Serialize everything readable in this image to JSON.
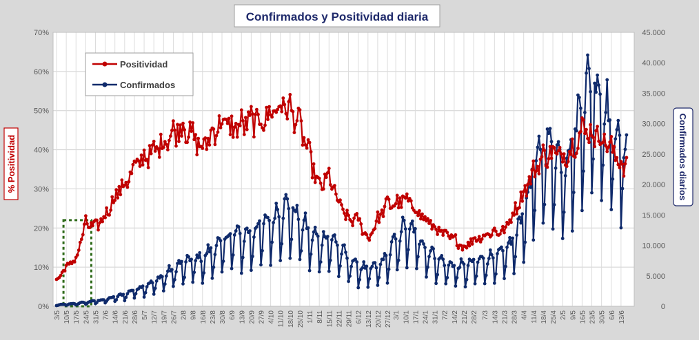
{
  "chart_data": {
    "type": "line",
    "title": "Confirmados  y Positividad  diaria",
    "ylabel_left": "% Positividad",
    "ylabel_right": "Confirmados diarios",
    "legend_position": "top-left",
    "grid": true,
    "y_left": {
      "min": 0,
      "max": 70,
      "ticks": [
        "0%",
        "10%",
        "20%",
        "30%",
        "40%",
        "50%",
        "60%",
        "70%"
      ]
    },
    "y_right": {
      "min": 0,
      "max": 45000,
      "ticks": [
        "0",
        "5.000",
        "10.000",
        "15.000",
        "20.000",
        "25.000",
        "30.000",
        "35.000",
        "40.000",
        "45.000"
      ]
    },
    "x_ticks": [
      "3/5",
      "10/5",
      "17/5",
      "24/5",
      "31/5",
      "7/6",
      "14/6",
      "21/6",
      "28/6",
      "5/7",
      "12/7",
      "19/7",
      "26/7",
      "2/8",
      "9/8",
      "16/8",
      "23/8",
      "30/8",
      "6/9",
      "13/9",
      "20/9",
      "27/9",
      "4/10",
      "11/10",
      "18/10",
      "25/10",
      "1/11",
      "8/11",
      "15/11",
      "22/11",
      "29/11",
      "6/12",
      "13/12",
      "20/12",
      "27/12",
      "3/1",
      "10/1",
      "17/1",
      "24/1",
      "31/1",
      "7/2",
      "14/2",
      "21/2",
      "28/2",
      "7/3",
      "14/3",
      "21/3",
      "28/3",
      "4/4",
      "11/4",
      "18/4",
      "25/4",
      "2/5",
      "9/5",
      "16/5",
      "23/5",
      "30/5",
      "6/6",
      "13/6"
    ],
    "series": [
      {
        "name": "Positividad",
        "axis": "left",
        "color": "#c00000",
        "weekly_points": [
          {
            "x": "3/5",
            "y": 6.5
          },
          {
            "x": "10/5",
            "y": 10
          },
          {
            "x": "17/5",
            "y": 12
          },
          {
            "x": "24/5",
            "y": 21
          },
          {
            "x": "31/5",
            "y": 20
          },
          {
            "x": "7/6",
            "y": 23
          },
          {
            "x": "14/6",
            "y": 28
          },
          {
            "x": "21/6",
            "y": 31
          },
          {
            "x": "28/6",
            "y": 35
          },
          {
            "x": "5/7",
            "y": 38
          },
          {
            "x": "12/7",
            "y": 39
          },
          {
            "x": "19/7",
            "y": 42
          },
          {
            "x": "26/7",
            "y": 44
          },
          {
            "x": "2/8",
            "y": 46
          },
          {
            "x": "9/8",
            "y": 43
          },
          {
            "x": "16/8",
            "y": 40
          },
          {
            "x": "23/8",
            "y": 44
          },
          {
            "x": "30/8",
            "y": 47
          },
          {
            "x": "6/9",
            "y": 45
          },
          {
            "x": "13/9",
            "y": 46
          },
          {
            "x": "20/9",
            "y": 47
          },
          {
            "x": "27/9",
            "y": 47
          },
          {
            "x": "4/10",
            "y": 49
          },
          {
            "x": "11/10",
            "y": 51
          },
          {
            "x": "18/10",
            "y": 50
          },
          {
            "x": "25/10",
            "y": 46
          },
          {
            "x": "1/11",
            "y": 38
          },
          {
            "x": "8/11",
            "y": 30
          },
          {
            "x": "15/11",
            "y": 33
          },
          {
            "x": "22/11",
            "y": 26
          },
          {
            "x": "29/11",
            "y": 22
          },
          {
            "x": "6/12",
            "y": 22
          },
          {
            "x": "13/12",
            "y": 17
          },
          {
            "x": "20/12",
            "y": 22
          },
          {
            "x": "27/12",
            "y": 26
          },
          {
            "x": "3/1",
            "y": 26
          },
          {
            "x": "10/1",
            "y": 27
          },
          {
            "x": "17/1",
            "y": 25
          },
          {
            "x": "24/1",
            "y": 22
          },
          {
            "x": "31/1",
            "y": 20
          },
          {
            "x": "7/2",
            "y": 18
          },
          {
            "x": "14/2",
            "y": 17
          },
          {
            "x": "21/2",
            "y": 15
          },
          {
            "x": "28/2",
            "y": 17
          },
          {
            "x": "7/3",
            "y": 18
          },
          {
            "x": "14/3",
            "y": 19
          },
          {
            "x": "21/3",
            "y": 19
          },
          {
            "x": "28/3",
            "y": 24
          },
          {
            "x": "4/4",
            "y": 29
          },
          {
            "x": "11/4",
            "y": 34
          },
          {
            "x": "18/4",
            "y": 38
          },
          {
            "x": "25/4",
            "y": 39
          },
          {
            "x": "2/5",
            "y": 38
          },
          {
            "x": "9/5",
            "y": 40
          },
          {
            "x": "16/5",
            "y": 45
          },
          {
            "x": "23/5",
            "y": 44
          },
          {
            "x": "30/5",
            "y": 43
          },
          {
            "x": "6/6",
            "y": 40
          },
          {
            "x": "13/6",
            "y": 36
          }
        ]
      },
      {
        "name": "Confirmados",
        "axis": "right",
        "color": "#0f2a6b",
        "weekly_points": [
          {
            "x": "3/5",
            "y": 200
          },
          {
            "x": "10/5",
            "y": 300
          },
          {
            "x": "17/5",
            "y": 400
          },
          {
            "x": "24/5",
            "y": 600
          },
          {
            "x": "31/5",
            "y": 800
          },
          {
            "x": "7/6",
            "y": 1000
          },
          {
            "x": "14/6",
            "y": 1400
          },
          {
            "x": "21/6",
            "y": 1800
          },
          {
            "x": "28/6",
            "y": 2500
          },
          {
            "x": "5/7",
            "y": 3000
          },
          {
            "x": "12/7",
            "y": 3600
          },
          {
            "x": "19/7",
            "y": 4600
          },
          {
            "x": "26/7",
            "y": 5600
          },
          {
            "x": "2/8",
            "y": 6500
          },
          {
            "x": "9/8",
            "y": 7000
          },
          {
            "x": "16/8",
            "y": 7200
          },
          {
            "x": "23/8",
            "y": 8500
          },
          {
            "x": "30/8",
            "y": 9500
          },
          {
            "x": "6/9",
            "y": 11000
          },
          {
            "x": "13/9",
            "y": 10500
          },
          {
            "x": "20/9",
            "y": 11000
          },
          {
            "x": "27/9",
            "y": 12000
          },
          {
            "x": "4/10",
            "y": 13000
          },
          {
            "x": "11/10",
            "y": 14500
          },
          {
            "x": "18/10",
            "y": 15000
          },
          {
            "x": "25/10",
            "y": 13000
          },
          {
            "x": "1/11",
            "y": 11000
          },
          {
            "x": "8/11",
            "y": 10000
          },
          {
            "x": "15/11",
            "y": 10500
          },
          {
            "x": "22/11",
            "y": 9000
          },
          {
            "x": "29/11",
            "y": 7000
          },
          {
            "x": "6/12",
            "y": 6000
          },
          {
            "x": "13/12",
            "y": 5500
          },
          {
            "x": "20/12",
            "y": 6000
          },
          {
            "x": "27/12",
            "y": 7500
          },
          {
            "x": "3/1",
            "y": 10000
          },
          {
            "x": "10/1",
            "y": 12000
          },
          {
            "x": "17/1",
            "y": 11000
          },
          {
            "x": "24/1",
            "y": 9000
          },
          {
            "x": "31/1",
            "y": 7500
          },
          {
            "x": "7/2",
            "y": 6500
          },
          {
            "x": "14/2",
            "y": 6000
          },
          {
            "x": "21/2",
            "y": 6000
          },
          {
            "x": "28/2",
            "y": 6500
          },
          {
            "x": "7/3",
            "y": 7000
          },
          {
            "x": "14/3",
            "y": 7500
          },
          {
            "x": "21/3",
            "y": 8000
          },
          {
            "x": "28/3",
            "y": 10000
          },
          {
            "x": "4/4",
            "y": 14000
          },
          {
            "x": "11/4",
            "y": 20000
          },
          {
            "x": "18/4",
            "y": 24000
          },
          {
            "x": "25/4",
            "y": 24000
          },
          {
            "x": "2/5",
            "y": 21000
          },
          {
            "x": "9/5",
            "y": 24000
          },
          {
            "x": "16/5",
            "y": 31000
          },
          {
            "x": "23/5",
            "y": 34000
          },
          {
            "x": "30/5",
            "y": 32000
          },
          {
            "x": "6/6",
            "y": 27000
          },
          {
            "x": "13/6",
            "y": 24000
          }
        ]
      }
    ],
    "highlight_box": {
      "x_start": "8/5",
      "x_end": "28/5",
      "y_max": 22
    }
  }
}
